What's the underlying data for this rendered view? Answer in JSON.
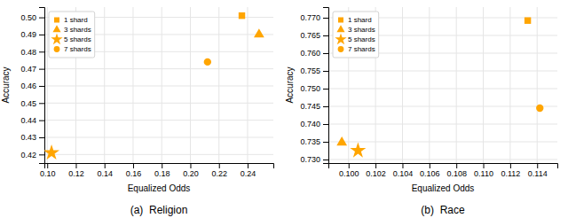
{
  "chart_data": [
    {
      "type": "scatter",
      "title": "(a)  Religion",
      "xlabel": "Equalized Odds",
      "ylabel": "Accuracy",
      "series": [
        {
          "name": "1 shard",
          "marker": "square",
          "color": "#FFA500",
          "x": [
            0.236
          ],
          "values": [
            0.501
          ]
        },
        {
          "name": "3 shards",
          "marker": "triangle",
          "color": "#FFA500",
          "x": [
            0.248
          ],
          "values": [
            0.49
          ]
        },
        {
          "name": "5 shards",
          "marker": "star",
          "color": "#FFA500",
          "x": [
            0.103
          ],
          "values": [
            0.421
          ]
        },
        {
          "name": "7 shards",
          "marker": "circle",
          "color": "#FFA500",
          "x": [
            0.212
          ],
          "values": [
            0.474
          ]
        }
      ],
      "xlim": [
        0.098,
        0.258
      ],
      "ylim": [
        0.415,
        0.506
      ],
      "xticks": [
        {
          "value": 0.1,
          "label": "0.10"
        },
        0.12,
        0.14,
        0.16,
        0.18,
        {
          "value": 0.2,
          "label": "0.20"
        },
        0.22,
        0.24
      ],
      "yticks": [
        0.42,
        0.43,
        0.44,
        0.45,
        0.46,
        0.47,
        0.48,
        0.49,
        {
          "value": 0.5,
          "label": "0.50"
        }
      ],
      "grid": true,
      "legend": "upper left"
    },
    {
      "type": "scatter",
      "title": "(b)  Race",
      "xlabel": "Equalized Odds",
      "ylabel": "Accuracy",
      "series": [
        {
          "name": "1 shard",
          "marker": "square",
          "color": "#FFA500",
          "x": [
            0.1133
          ],
          "values": [
            0.7692
          ]
        },
        {
          "name": "3 shards",
          "marker": "triangle",
          "color": "#FFA500",
          "x": [
            0.0995
          ],
          "values": [
            0.7348
          ]
        },
        {
          "name": "5 shards",
          "marker": "star",
          "color": "#FFA500",
          "x": [
            0.1007
          ],
          "values": [
            0.7325
          ]
        },
        {
          "name": "7 shards",
          "marker": "circle",
          "color": "#FFA500",
          "x": [
            0.1142
          ],
          "values": [
            0.7445
          ]
        }
      ],
      "xlim": [
        0.0985,
        0.1155
      ],
      "ylim": [
        0.729,
        0.773
      ],
      "xticks": [
        {
          "value": 0.1,
          "label": "0.100"
        },
        0.102,
        0.104,
        0.106,
        0.108,
        {
          "value": 0.11,
          "label": "0.110"
        },
        0.112,
        0.114
      ],
      "yticks": [
        {
          "value": 0.73,
          "label": "0.730"
        },
        0.735,
        {
          "value": 0.74,
          "label": "0.740"
        },
        0.745,
        {
          "value": 0.75,
          "label": "0.750"
        },
        0.755,
        {
          "value": 0.76,
          "label": "0.760"
        },
        0.765,
        {
          "value": 0.77,
          "label": "0.770"
        }
      ],
      "grid": true,
      "legend": "upper left"
    }
  ]
}
